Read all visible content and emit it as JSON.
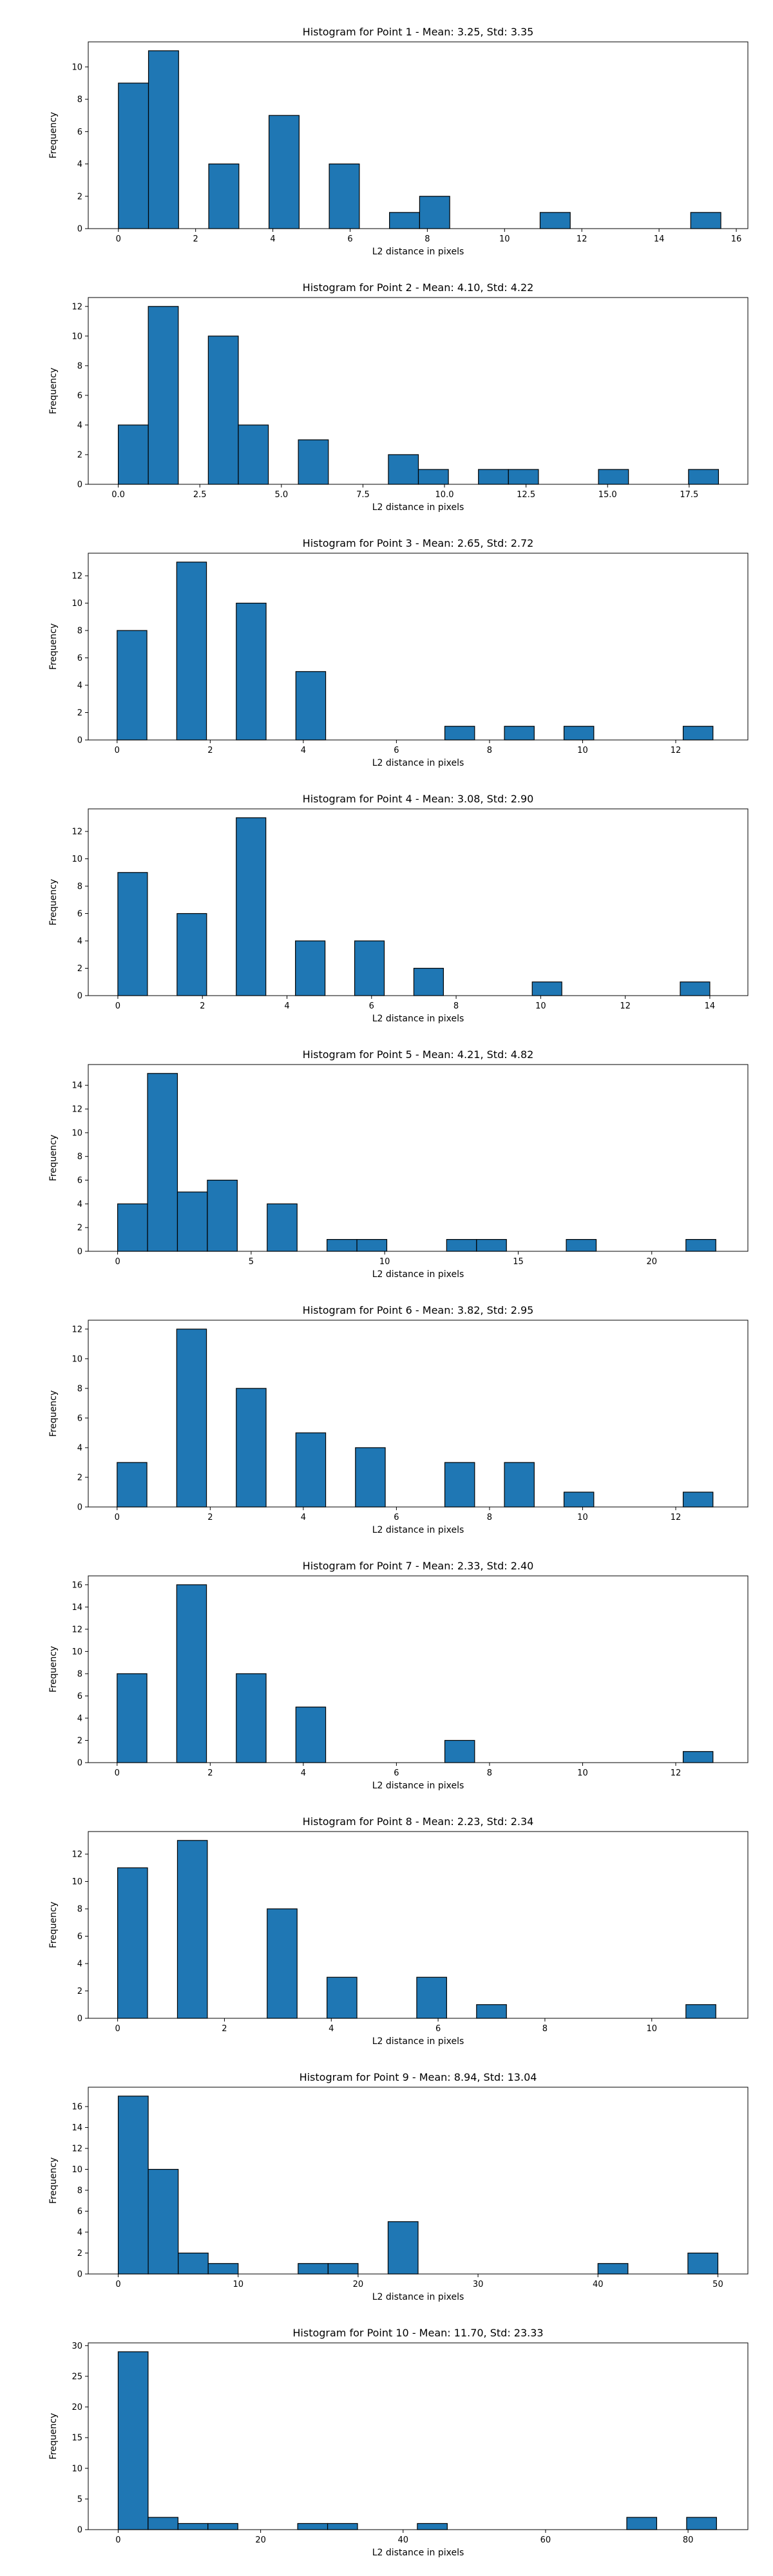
{
  "style": {
    "bar_color": "#1f77b4",
    "edge_color": "#000000",
    "axes_color": "#000000",
    "background": "#ffffff"
  },
  "chart_data": [
    {
      "type": "bar",
      "title": "Histogram for Point 1 - Mean: 3.25, Std: 3.35",
      "xlabel": "L2 distance in pixels",
      "ylabel": "Frequency",
      "xlim": [
        -0.78,
        16.3
      ],
      "ylim": [
        0,
        11.55
      ],
      "xticks": [
        0,
        2,
        4,
        6,
        8,
        10,
        12,
        14,
        16
      ],
      "yticks": [
        0,
        2,
        4,
        6,
        8,
        10
      ],
      "grid": false,
      "bins": [
        {
          "x0": 0.0,
          "x1": 0.78,
          "count": 9
        },
        {
          "x0": 0.78,
          "x1": 1.56,
          "count": 11
        },
        {
          "x0": 2.34,
          "x1": 3.12,
          "count": 4
        },
        {
          "x0": 3.9,
          "x1": 4.68,
          "count": 7
        },
        {
          "x0": 5.46,
          "x1": 6.24,
          "count": 4
        },
        {
          "x0": 7.02,
          "x1": 7.8,
          "count": 1
        },
        {
          "x0": 7.8,
          "x1": 8.58,
          "count": 2
        },
        {
          "x0": 10.92,
          "x1": 11.7,
          "count": 1
        },
        {
          "x0": 14.82,
          "x1": 15.6,
          "count": 1
        }
      ]
    },
    {
      "type": "bar",
      "title": "Histogram for Point 2 - Mean: 4.10, Std: 4.22",
      "xlabel": "L2 distance in pixels",
      "ylabel": "Frequency",
      "xlim": [
        -0.92,
        19.3
      ],
      "ylim": [
        0,
        12.6
      ],
      "xticks": [
        0.0,
        2.5,
        5.0,
        7.5,
        10.0,
        12.5,
        15.0,
        17.5
      ],
      "xtick_labels": [
        "0.0",
        "2.5",
        "5.0",
        "7.5",
        "10.0",
        "12.5",
        "15.0",
        "17.5"
      ],
      "yticks": [
        0,
        2,
        4,
        6,
        8,
        10,
        12
      ],
      "grid": false,
      "bins": [
        {
          "x0": 0.0,
          "x1": 0.92,
          "count": 4
        },
        {
          "x0": 0.92,
          "x1": 1.84,
          "count": 12
        },
        {
          "x0": 2.76,
          "x1": 3.68,
          "count": 10
        },
        {
          "x0": 3.68,
          "x1": 4.6,
          "count": 4
        },
        {
          "x0": 5.52,
          "x1": 6.44,
          "count": 3
        },
        {
          "x0": 8.28,
          "x1": 9.2,
          "count": 2
        },
        {
          "x0": 9.2,
          "x1": 10.12,
          "count": 1
        },
        {
          "x0": 11.04,
          "x1": 11.96,
          "count": 1
        },
        {
          "x0": 11.96,
          "x1": 12.88,
          "count": 1
        },
        {
          "x0": 14.72,
          "x1": 15.64,
          "count": 1
        },
        {
          "x0": 17.48,
          "x1": 18.4,
          "count": 1
        }
      ]
    },
    {
      "type": "bar",
      "title": "Histogram for Point 3 - Mean: 2.65, Std: 2.72",
      "xlabel": "L2 distance in pixels",
      "ylabel": "Frequency",
      "xlim": [
        -0.62,
        13.55
      ],
      "ylim": [
        0,
        13.65
      ],
      "xticks": [
        0,
        2,
        4,
        6,
        8,
        10,
        12
      ],
      "yticks": [
        0,
        2,
        4,
        6,
        8,
        10,
        12
      ],
      "grid": false,
      "bins": [
        {
          "x0": 0.0,
          "x1": 0.64,
          "count": 8
        },
        {
          "x0": 1.28,
          "x1": 1.92,
          "count": 13
        },
        {
          "x0": 2.56,
          "x1": 3.2,
          "count": 10
        },
        {
          "x0": 3.84,
          "x1": 4.48,
          "count": 5
        },
        {
          "x0": 7.04,
          "x1": 7.68,
          "count": 1
        },
        {
          "x0": 8.32,
          "x1": 8.96,
          "count": 1
        },
        {
          "x0": 9.6,
          "x1": 10.24,
          "count": 1
        },
        {
          "x0": 12.16,
          "x1": 12.8,
          "count": 1
        }
      ]
    },
    {
      "type": "bar",
      "title": "Histogram for Point 4 - Mean: 3.08, Std: 2.90",
      "xlabel": "L2 distance in pixels",
      "ylabel": "Frequency",
      "xlim": [
        -0.7,
        14.9
      ],
      "ylim": [
        0,
        13.65
      ],
      "xticks": [
        0,
        2,
        4,
        6,
        8,
        10,
        12,
        14
      ],
      "yticks": [
        0,
        2,
        4,
        6,
        8,
        10,
        12
      ],
      "grid": false,
      "bins": [
        {
          "x0": 0.0,
          "x1": 0.7,
          "count": 9
        },
        {
          "x0": 1.4,
          "x1": 2.1,
          "count": 6
        },
        {
          "x0": 2.8,
          "x1": 3.5,
          "count": 13
        },
        {
          "x0": 4.2,
          "x1": 4.9,
          "count": 4
        },
        {
          "x0": 5.6,
          "x1": 6.3,
          "count": 4
        },
        {
          "x0": 7.0,
          "x1": 7.7,
          "count": 2
        },
        {
          "x0": 9.8,
          "x1": 10.5,
          "count": 1
        },
        {
          "x0": 13.3,
          "x1": 14.0,
          "count": 1
        }
      ]
    },
    {
      "type": "bar",
      "title": "Histogram for Point 5 - Mean: 4.21, Std: 4.82",
      "xlabel": "L2 distance in pixels",
      "ylabel": "Frequency",
      "xlim": [
        -1.1,
        23.6
      ],
      "ylim": [
        0,
        15.75
      ],
      "xticks": [
        0,
        5,
        10,
        15,
        20
      ],
      "yticks": [
        0,
        2,
        4,
        6,
        8,
        10,
        12,
        14
      ],
      "grid": false,
      "bins": [
        {
          "x0": 0.0,
          "x1": 1.12,
          "count": 4
        },
        {
          "x0": 1.12,
          "x1": 2.24,
          "count": 15
        },
        {
          "x0": 2.24,
          "x1": 3.36,
          "count": 5
        },
        {
          "x0": 3.36,
          "x1": 4.48,
          "count": 6
        },
        {
          "x0": 5.6,
          "x1": 6.72,
          "count": 4
        },
        {
          "x0": 7.84,
          "x1": 8.96,
          "count": 1
        },
        {
          "x0": 8.96,
          "x1": 10.08,
          "count": 1
        },
        {
          "x0": 12.32,
          "x1": 13.44,
          "count": 1
        },
        {
          "x0": 13.44,
          "x1": 14.56,
          "count": 1
        },
        {
          "x0": 16.8,
          "x1": 17.92,
          "count": 1
        },
        {
          "x0": 21.28,
          "x1": 22.4,
          "count": 1
        }
      ]
    },
    {
      "type": "bar",
      "title": "Histogram for Point 6 - Mean: 3.82, Std: 2.95",
      "xlabel": "L2 distance in pixels",
      "ylabel": "Frequency",
      "xlim": [
        -0.62,
        13.55
      ],
      "ylim": [
        0,
        12.6
      ],
      "xticks": [
        0,
        2,
        4,
        6,
        8,
        10,
        12
      ],
      "yticks": [
        0,
        2,
        4,
        6,
        8,
        10,
        12
      ],
      "grid": false,
      "bins": [
        {
          "x0": 0.0,
          "x1": 0.64,
          "count": 3
        },
        {
          "x0": 1.28,
          "x1": 1.92,
          "count": 12
        },
        {
          "x0": 2.56,
          "x1": 3.2,
          "count": 8
        },
        {
          "x0": 3.84,
          "x1": 4.48,
          "count": 5
        },
        {
          "x0": 5.12,
          "x1": 5.76,
          "count": 4
        },
        {
          "x0": 7.04,
          "x1": 7.68,
          "count": 3
        },
        {
          "x0": 8.32,
          "x1": 8.96,
          "count": 3
        },
        {
          "x0": 9.6,
          "x1": 10.24,
          "count": 1
        },
        {
          "x0": 12.16,
          "x1": 12.8,
          "count": 1
        }
      ]
    },
    {
      "type": "bar",
      "title": "Histogram for Point 7 - Mean: 2.33, Std: 2.40",
      "xlabel": "L2 distance in pixels",
      "ylabel": "Frequency",
      "xlim": [
        -0.62,
        13.55
      ],
      "ylim": [
        0,
        16.8
      ],
      "xticks": [
        0,
        2,
        4,
        6,
        8,
        10,
        12
      ],
      "yticks": [
        0,
        2,
        4,
        6,
        8,
        10,
        12,
        14,
        16
      ],
      "grid": false,
      "bins": [
        {
          "x0": 0.0,
          "x1": 0.64,
          "count": 8
        },
        {
          "x0": 1.28,
          "x1": 1.92,
          "count": 16
        },
        {
          "x0": 2.56,
          "x1": 3.2,
          "count": 8
        },
        {
          "x0": 3.84,
          "x1": 4.48,
          "count": 5
        },
        {
          "x0": 7.04,
          "x1": 7.68,
          "count": 2
        },
        {
          "x0": 12.16,
          "x1": 12.8,
          "count": 1
        }
      ]
    },
    {
      "type": "bar",
      "title": "Histogram for Point 8 - Mean: 2.23, Std: 2.34",
      "xlabel": "L2 distance in pixels",
      "ylabel": "Frequency",
      "xlim": [
        -0.55,
        11.8
      ],
      "ylim": [
        0,
        13.65
      ],
      "xticks": [
        0,
        2,
        4,
        6,
        8,
        10
      ],
      "yticks": [
        0,
        2,
        4,
        6,
        8,
        10,
        12
      ],
      "grid": false,
      "bins": [
        {
          "x0": 0.0,
          "x1": 0.56,
          "count": 11
        },
        {
          "x0": 1.12,
          "x1": 1.68,
          "count": 13
        },
        {
          "x0": 2.8,
          "x1": 3.36,
          "count": 8
        },
        {
          "x0": 3.92,
          "x1": 4.48,
          "count": 3
        },
        {
          "x0": 5.6,
          "x1": 6.16,
          "count": 3
        },
        {
          "x0": 6.72,
          "x1": 7.28,
          "count": 1
        },
        {
          "x0": 10.64,
          "x1": 11.2,
          "count": 1
        }
      ]
    },
    {
      "type": "bar",
      "title": "Histogram for Point 9 - Mean: 8.94, Std: 13.04",
      "xlabel": "L2 distance in pixels",
      "ylabel": "Frequency",
      "xlim": [
        -2.5,
        52.5
      ],
      "ylim": [
        0,
        17.85
      ],
      "xticks": [
        0,
        10,
        20,
        30,
        40,
        50
      ],
      "yticks": [
        0,
        2,
        4,
        6,
        8,
        10,
        12,
        14,
        16
      ],
      "grid": false,
      "bins": [
        {
          "x0": 0.0,
          "x1": 2.5,
          "count": 17
        },
        {
          "x0": 2.5,
          "x1": 5.0,
          "count": 10
        },
        {
          "x0": 5.0,
          "x1": 7.5,
          "count": 2
        },
        {
          "x0": 7.5,
          "x1": 10.0,
          "count": 1
        },
        {
          "x0": 15.0,
          "x1": 17.5,
          "count": 1
        },
        {
          "x0": 17.5,
          "x1": 20.0,
          "count": 1
        },
        {
          "x0": 22.5,
          "x1": 25.0,
          "count": 5
        },
        {
          "x0": 40.0,
          "x1": 42.5,
          "count": 1
        },
        {
          "x0": 47.5,
          "x1": 50.0,
          "count": 2
        }
      ]
    },
    {
      "type": "bar",
      "title": "Histogram for Point 10 - Mean: 11.70, Std: 23.33",
      "xlabel": "L2 distance in pixels",
      "ylabel": "Frequency",
      "xlim": [
        -4.2,
        88.4
      ],
      "ylim": [
        0,
        30.45
      ],
      "xticks": [
        0,
        20,
        40,
        60,
        80
      ],
      "yticks": [
        0,
        5,
        10,
        15,
        20,
        25,
        30
      ],
      "grid": false,
      "bins": [
        {
          "x0": 0.0,
          "x1": 4.2,
          "count": 29
        },
        {
          "x0": 4.2,
          "x1": 8.4,
          "count": 2
        },
        {
          "x0": 8.4,
          "x1": 12.6,
          "count": 1
        },
        {
          "x0": 12.6,
          "x1": 16.8,
          "count": 1
        },
        {
          "x0": 25.2,
          "x1": 29.4,
          "count": 1
        },
        {
          "x0": 29.4,
          "x1": 33.6,
          "count": 1
        },
        {
          "x0": 42.0,
          "x1": 46.2,
          "count": 1
        },
        {
          "x0": 71.4,
          "x1": 75.6,
          "count": 2
        },
        {
          "x0": 79.8,
          "x1": 84.0,
          "count": 2
        }
      ]
    }
  ]
}
